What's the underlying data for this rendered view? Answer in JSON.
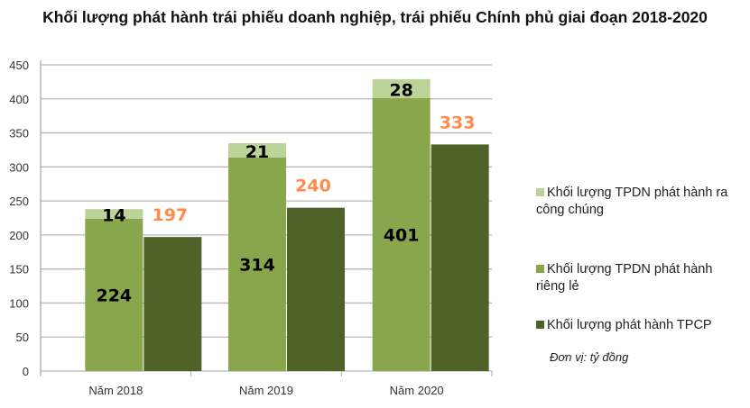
{
  "chart_data": {
    "type": "bar",
    "stacked_partial": true,
    "title": "Khối lượng phát hành trái phiếu doanh nghiệp, trái phiếu Chính phủ giai đoạn 2018-2020",
    "categories": [
      "Năm 2018",
      "Năm 2019",
      "Năm 2020"
    ],
    "series": [
      {
        "name": "Khối lượng TPDN phát hành ra công chúng",
        "values": [
          14,
          21,
          28
        ],
        "color": "#bcd39a",
        "stack": "TPDN"
      },
      {
        "name": "Khối lượng TPDN phát hành riêng lẻ",
        "values": [
          224,
          314,
          401
        ],
        "color": "#8aa64c",
        "stack": "TPDN"
      },
      {
        "name": "Khối lượng phát hành TPCP",
        "values": [
          197,
          240,
          333
        ],
        "color": "#4f6228",
        "stack": "TPCP"
      }
    ],
    "label_colors": {
      "TPDN": "#000000",
      "TPCP": "#ff8c4a"
    },
    "ylim": [
      0,
      450
    ],
    "yticks": [
      0,
      50,
      100,
      150,
      200,
      250,
      300,
      350,
      400,
      450
    ],
    "grid": true,
    "legend_position": "right",
    "unit_note": "Đơn vị: tỷ đồng"
  }
}
